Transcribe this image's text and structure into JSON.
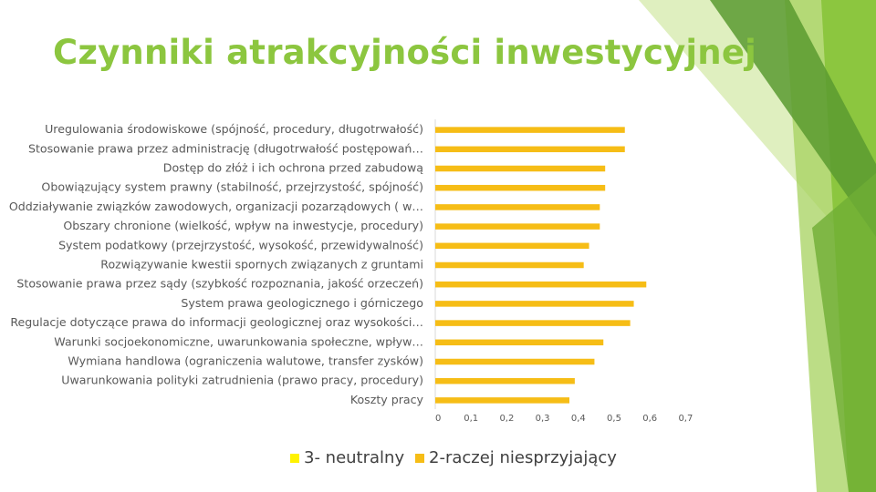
{
  "title": "Czynniki atrakcyjności inwestycyjnej",
  "colors": {
    "title": "#8cc63f",
    "series_neutral": "#fff200",
    "series_unfavorable": "#f6bd16",
    "deco_light": "#c5e18a",
    "deco_mid": "#8cc63f",
    "deco_dark": "#5a9a30"
  },
  "chart_data": {
    "type": "bar",
    "orientation": "horizontal",
    "categories": [
      "Uregulowania środowiskowe (spójność, procedury, długotrwałość)",
      "Stosowanie prawa przez administrację (długotrwałość postępowań…",
      "Dostęp do złóż i ich ochrona przed zabudową",
      "Obowiązujący system prawny (stabilność, przejrzystość, spójność)",
      "Oddziaływanie związków zawodowych, organizacji pozarządowych ( w…",
      "Obszary chronione (wielkość, wpływ na inwestycje, procedury)",
      "System podatkowy (przejrzystość, wysokość, przewidywalność)",
      "Rozwiązywanie kwestii spornych związanych z gruntami",
      "Stosowanie prawa przez sądy (szybkość rozpoznania, jakość orzeczeń)",
      "System prawa geologicznego i górniczego",
      "Regulacje dotyczące prawa do informacji geologicznej oraz wysokości…",
      "Warunki socjoekonomiczne, uwarunkowania społeczne, wpływ…",
      "Wymiana handlowa (ograniczenia walutowe, transfer zysków)",
      "Uwarunkowania polityki zatrudnienia (prawo pracy, procedury)",
      "Koszty pracy"
    ],
    "series": [
      {
        "name": "3- neutralny",
        "color": "#fff200",
        "values": [
          0,
          0,
          0,
          0,
          0,
          0,
          0,
          0,
          0,
          0,
          0,
          0,
          0,
          0,
          0
        ]
      },
      {
        "name": "2-raczej niesprzyjający",
        "color": "#f6bd16",
        "values": [
          0.53,
          0.53,
          0.475,
          0.475,
          0.46,
          0.46,
          0.43,
          0.415,
          0.59,
          0.555,
          0.545,
          0.47,
          0.445,
          0.39,
          0.375
        ]
      }
    ],
    "xlim": [
      0,
      0.7
    ],
    "xticks": [
      "0",
      "0,1",
      "0,2",
      "0,3",
      "0,4",
      "0,5",
      "0,6",
      "0,7"
    ],
    "legend": "bottom"
  }
}
